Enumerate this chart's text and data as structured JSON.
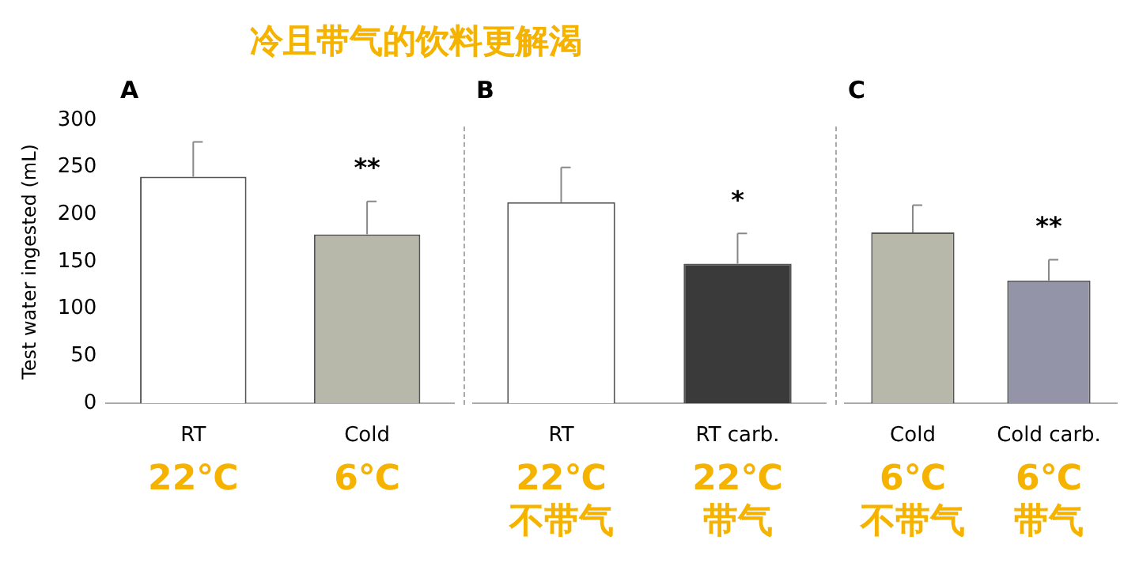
{
  "chart_data": [
    {
      "type": "bar",
      "title": "冷且带气的饮料更解渴",
      "ylabel": "Test water ingested (mL)",
      "categories": [
        "RT\n22℃",
        "Cold\n6℃"
      ],
      "values": [
        240,
        179
      ],
      "colors": [
        "#ffffff",
        "#b8b8aa"
      ],
      "errors": [
        [
          240,
          277
        ],
        [
          179,
          214
        ]
      ],
      "annotations": [
        "A",
        "**"
      ],
      "ylim": [
        0,
        300
      ],
      "yticks": [
        0,
        50,
        100,
        150,
        200,
        250,
        300
      ],
      "grid": false,
      "legend": false
    },
    {
      "type": "bar",
      "categories": [
        "RT\n22℃\n不带气",
        "RT carb.\n22℃\n带气"
      ],
      "values": [
        213,
        148
      ],
      "colors": [
        "#ffffff",
        "#3a3a3a"
      ],
      "errors": [
        [
          213,
          250
        ],
        [
          148,
          180
        ]
      ],
      "annotations": [
        "B",
        "*"
      ],
      "ylim": [
        0,
        300
      ],
      "tick_labels": "x",
      "grid": false,
      "legend": false
    },
    {
      "type": "bar",
      "categories": [
        "Cold\n6℃\n不带气",
        "Cold carb.\n6℃\n带气"
      ],
      "values": [
        181,
        130
      ],
      "colors": [
        "#b8b8aa",
        "#9494a8"
      ],
      "errors": [
        [
          181,
          210
        ],
        [
          130,
          152
        ]
      ],
      "annotations": [
        "C",
        "**"
      ],
      "ylim": [
        0,
        300
      ],
      "tick_labels": "x",
      "grid": false,
      "legend": false
    }
  ]
}
